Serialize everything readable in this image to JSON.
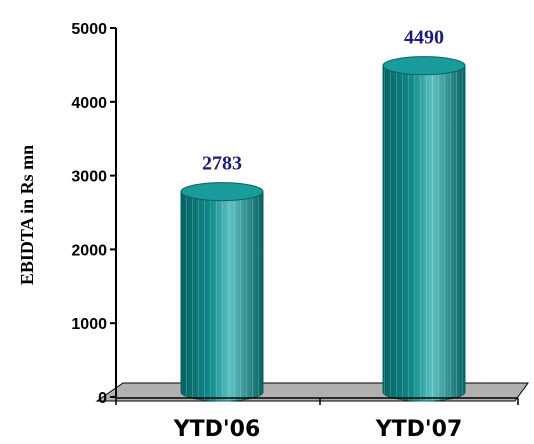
{
  "chart_data": {
    "type": "bar",
    "categories": [
      "YTD'06",
      "YTD'07"
    ],
    "values": [
      2783,
      4490
    ],
    "data_labels": [
      "2783",
      "4490"
    ],
    "title": "",
    "xlabel": "",
    "ylabel": "EBIDTA in Rs mn",
    "ylim": [
      0,
      5000
    ],
    "yticks": [
      "0",
      "1000",
      "2000",
      "3000",
      "4000",
      "5000"
    ],
    "grid": false,
    "bar_style": "3d-cylinder",
    "colors": {
      "bar": "#0e8a8a",
      "bar_dark": "#0a6262",
      "bar_light": "#5fc0c0",
      "bar_top": "#1a9c9c",
      "floor": "#b0b0b0",
      "data_label": "#1c1c7a",
      "axis": "#000000"
    }
  }
}
